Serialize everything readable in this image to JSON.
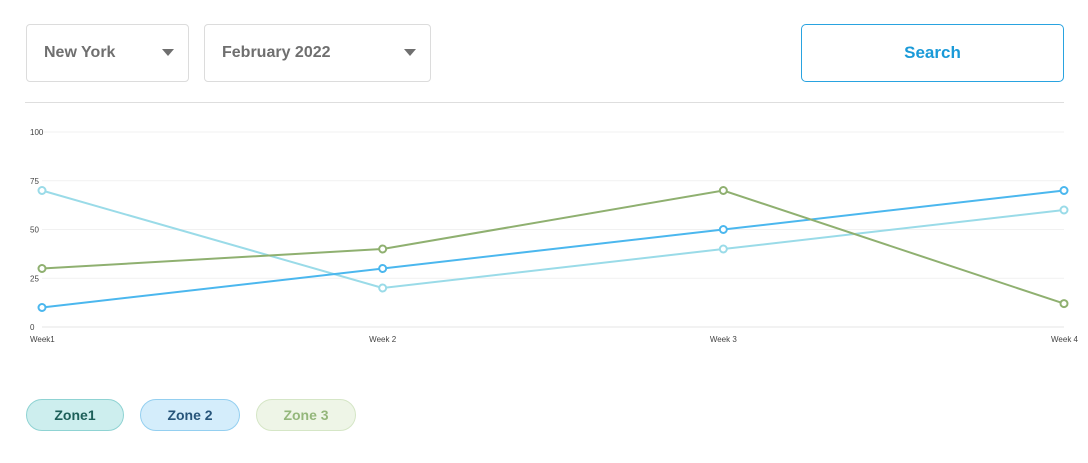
{
  "filters": {
    "city": {
      "value": "New York"
    },
    "month": {
      "value": "February 2022"
    }
  },
  "search": {
    "label": "Search"
  },
  "legend": [
    {
      "label": "Zone1"
    },
    {
      "label": "Zone 2"
    },
    {
      "label": "Zone 3"
    }
  ],
  "chart_data": {
    "type": "line",
    "categories": [
      "Week1",
      "Week 2",
      "Week 3",
      "Week 4"
    ],
    "y_ticks": [
      0,
      25,
      50,
      75,
      100
    ],
    "ylim": [
      0,
      100
    ],
    "grid": true,
    "legend_placement": "bottom-left",
    "series": [
      {
        "name": "Zone1",
        "values": [
          70,
          20,
          40,
          60
        ],
        "color": "#9adbe8"
      },
      {
        "name": "Zone 2",
        "values": [
          10,
          30,
          50,
          70
        ],
        "color": "#4bb7ee"
      },
      {
        "name": "Zone 3",
        "values": [
          30,
          40,
          70,
          12
        ],
        "color": "#8fb070"
      }
    ]
  }
}
